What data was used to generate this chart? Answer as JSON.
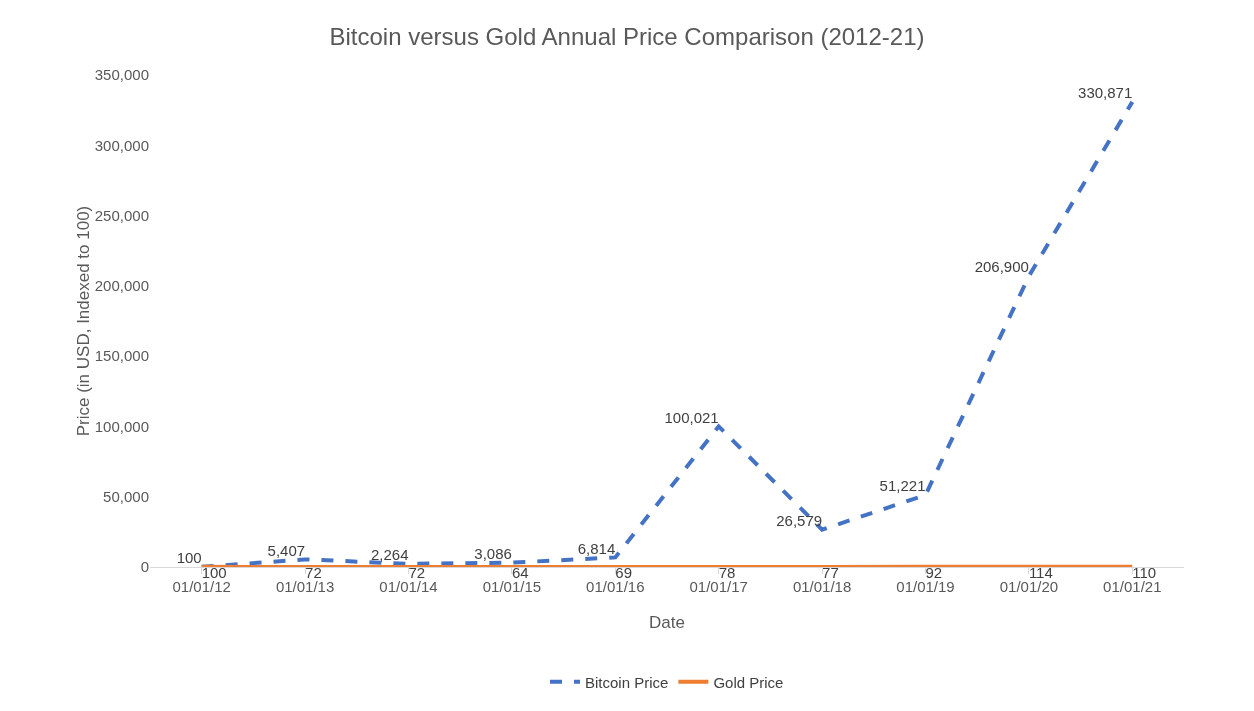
{
  "chart_data": {
    "type": "line",
    "title": "Bitcoin versus Gold Annual Price Comparison (2012-21)",
    "xlabel": "Date",
    "ylabel": "Price (in USD, Indexed to 100)",
    "categories": [
      "01/01/12",
      "01/01/13",
      "01/01/14",
      "01/01/15",
      "01/01/16",
      "01/01/17",
      "01/01/18",
      "01/01/19",
      "01/01/20",
      "01/01/21"
    ],
    "series": [
      {
        "name": "Bitcoin Price",
        "color": "#4472c4",
        "line_style": "dashed",
        "values": [
          100,
          5407,
          2264,
          3086,
          6814,
          100021,
          26579,
          51221,
          206900,
          330871
        ],
        "value_labels": [
          "100",
          "5,407",
          "2,264",
          "3,086",
          "6,814",
          "100,021",
          "26,579",
          "51,221",
          "206,900",
          "330,871"
        ]
      },
      {
        "name": "Gold Price",
        "color": "#ed7d31",
        "line_style": "solid",
        "values": [
          100,
          72,
          72,
          64,
          69,
          78,
          77,
          92,
          114,
          110
        ],
        "value_labels": [
          "100",
          "72",
          "72",
          "64",
          "69",
          "78",
          "77",
          "92",
          "114",
          "110"
        ]
      }
    ],
    "ylim": [
      0,
      350000
    ],
    "yticks": [
      {
        "value": 0,
        "label": "0"
      },
      {
        "value": 50000,
        "label": "50,000"
      },
      {
        "value": 100000,
        "label": "100,000"
      },
      {
        "value": 150000,
        "label": "150,000"
      },
      {
        "value": 200000,
        "label": "200,000"
      },
      {
        "value": 250000,
        "label": "250,000"
      },
      {
        "value": 300000,
        "label": "300,000"
      },
      {
        "value": 350000,
        "label": "350,000"
      }
    ],
    "grid": false,
    "legend": "bottom",
    "marker": "none"
  }
}
